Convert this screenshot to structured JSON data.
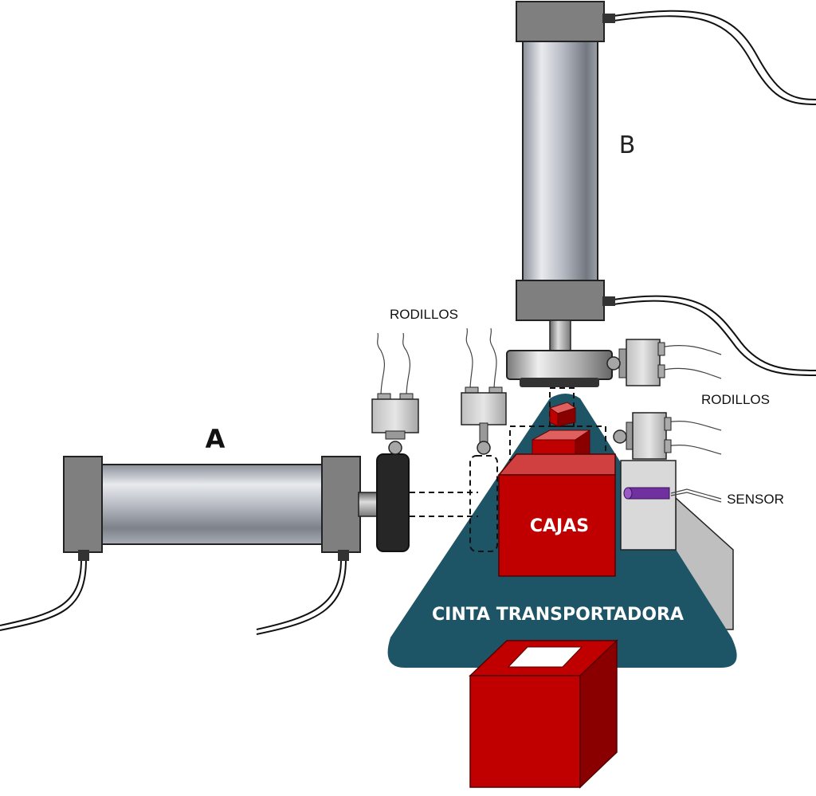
{
  "labels": {
    "cylinder_a": "A",
    "cylinder_b": "B",
    "rollers_left": "RODILLOS",
    "rollers_right": "RODILLOS",
    "sensor": "SENSOR",
    "boxes": "CAJAS",
    "conveyor": "CINTA TRANSPORTADORA"
  },
  "colors": {
    "box_red": "#c00000",
    "box_dark": "#8a0000",
    "conveyor": "#1d5566",
    "cylinder_cap": "#7f7f7f",
    "sensor_beam": "#7030a0"
  },
  "icons": [
    "pneumatic-cylinder",
    "limit-switch",
    "optical-sensor",
    "box"
  ]
}
